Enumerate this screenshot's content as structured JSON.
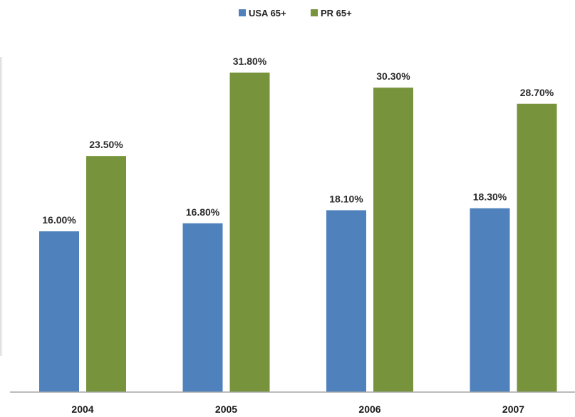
{
  "chart_data": {
    "type": "bar",
    "categories": [
      "2004",
      "2005",
      "2006",
      "2007"
    ],
    "series": [
      {
        "name": "USA 65+",
        "values": [
          16.0,
          16.8,
          18.1,
          18.3
        ],
        "labels": [
          "16.00%",
          "16.80%",
          "18.10%",
          "18.30%"
        ],
        "color": "#4f81bd"
      },
      {
        "name": "PR 65+",
        "values": [
          23.5,
          31.8,
          30.3,
          28.7
        ],
        "labels": [
          "23.50%",
          "31.80%",
          "30.30%",
          "28.70%"
        ],
        "color": "#77933c"
      }
    ],
    "title": "",
    "xlabel": "",
    "ylabel": "",
    "ylim": [
      0,
      34
    ],
    "grid": false,
    "legend": "top-center"
  }
}
